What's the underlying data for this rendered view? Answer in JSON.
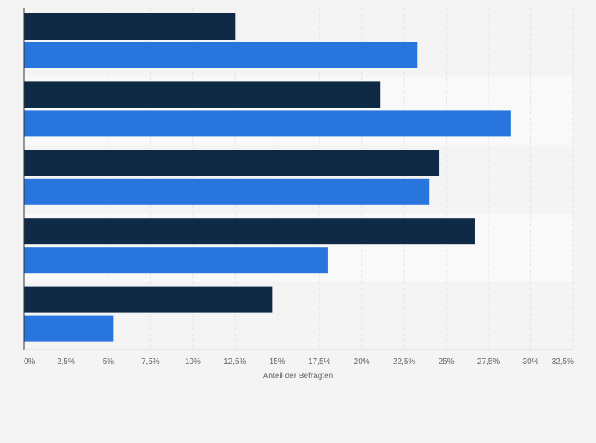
{
  "chart_data": {
    "type": "bar",
    "orientation": "horizontal",
    "categories": [
      "",
      "",
      "",
      "",
      ""
    ],
    "series": [
      {
        "color": "#0f2a45",
        "values": [
          12.5,
          21.1,
          24.6,
          26.7,
          14.7
        ]
      },
      {
        "color": "#2876dd",
        "values": [
          23.3,
          28.8,
          24.0,
          18.0,
          5.3
        ]
      }
    ],
    "xlim": [
      0,
      32.5
    ],
    "x_ticks": [
      "0%",
      "2,5%",
      "5%",
      "7,5%",
      "10%",
      "12,5%",
      "15%",
      "17,5%",
      "20%",
      "22,5%",
      "25%",
      "27,5%",
      "30%",
      "32,5%"
    ],
    "xlabel": "Anteil der Befragten",
    "grid": true,
    "legend": "none"
  },
  "colors": {
    "background": "#f4f4f4",
    "band_alt": "#f9f9f9",
    "grid": "#d8d8d8",
    "axis": "#333333"
  }
}
